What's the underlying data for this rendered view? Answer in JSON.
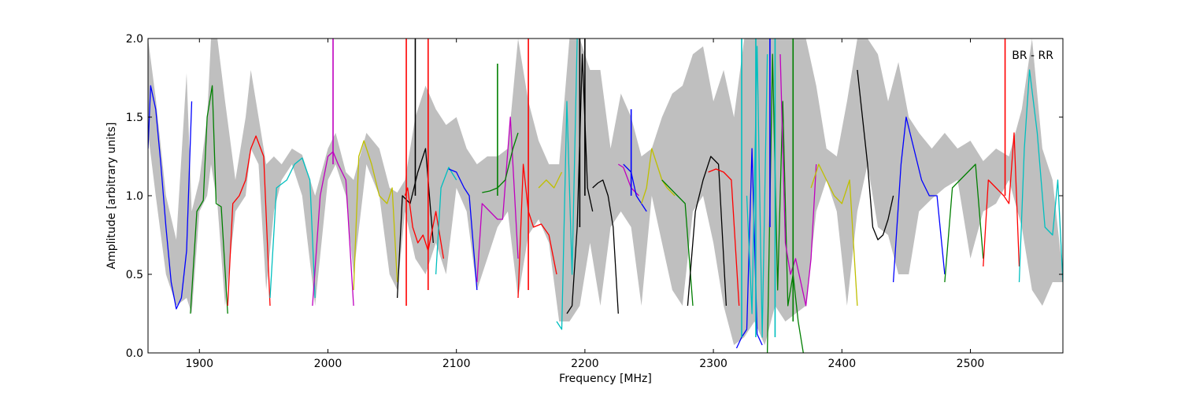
{
  "chart_data": {
    "type": "line",
    "title": "",
    "annotation": "BR - RR",
    "xlabel": "Frequency [MHz]",
    "ylabel": "Amplitude [arbitrary units]",
    "xlim": [
      1860,
      2572
    ],
    "ylim": [
      0.0,
      2.0
    ],
    "x_ticks": [
      1900,
      2000,
      2100,
      2200,
      2300,
      2400,
      2500
    ],
    "y_ticks": [
      0.0,
      0.5,
      1.0,
      1.5,
      2.0
    ],
    "x_tick_labels": [
      "1900",
      "2000",
      "2100",
      "2200",
      "2300",
      "2400",
      "2500"
    ],
    "y_tick_labels": [
      "0.0",
      "0.5",
      "1.0",
      "1.5",
      "2.0"
    ],
    "grid": false,
    "legend": "none",
    "envelope": {
      "color": "#bfbfbf",
      "x": [
        1860,
        1866,
        1874,
        1882,
        1890,
        1894,
        1900,
        1906,
        1909,
        1914,
        1920,
        1928,
        1936,
        1940,
        1946,
        1952,
        1958,
        1964,
        1972,
        1980,
        1990,
        2000,
        2006,
        2014,
        2020,
        2030,
        2040,
        2048,
        2054,
        2060,
        2068,
        2076,
        2084,
        2092,
        2100,
        2108,
        2116,
        2124,
        2132,
        2140,
        2148,
        2156,
        2164,
        2172,
        2180,
        2188,
        2196,
        2204,
        2212,
        2220,
        2228,
        2236,
        2244,
        2252,
        2260,
        2268,
        2276,
        2284,
        2292,
        2300,
        2308,
        2316,
        2324,
        2332,
        2340,
        2348,
        2356,
        2364,
        2372,
        2380,
        2388,
        2396,
        2404,
        2412,
        2420,
        2428,
        2436,
        2444,
        2452,
        2460,
        2470,
        2480,
        2490,
        2500,
        2510,
        2520,
        2530,
        2540,
        2548,
        2556,
        2564,
        2572
      ],
      "upper": [
        2.0,
        1.62,
        1.0,
        0.72,
        1.78,
        0.9,
        1.1,
        1.5,
        2.0,
        2.0,
        1.6,
        1.1,
        1.5,
        1.8,
        1.5,
        1.2,
        1.25,
        1.2,
        1.3,
        1.26,
        1.0,
        1.3,
        1.4,
        1.15,
        1.1,
        1.4,
        1.3,
        1.05,
        1.02,
        1.1,
        1.5,
        1.7,
        1.55,
        1.45,
        1.5,
        1.3,
        1.2,
        1.25,
        1.25,
        1.3,
        2.0,
        1.6,
        1.35,
        1.2,
        1.2,
        2.0,
        2.0,
        1.8,
        1.8,
        1.3,
        1.65,
        1.5,
        1.25,
        1.3,
        1.5,
        1.65,
        1.7,
        1.9,
        1.95,
        1.6,
        1.8,
        1.5,
        2.0,
        2.0,
        2.0,
        2.0,
        2.0,
        2.0,
        2.0,
        1.7,
        1.3,
        1.25,
        1.6,
        2.0,
        2.0,
        1.9,
        1.6,
        1.85,
        1.5,
        1.4,
        1.3,
        1.4,
        1.3,
        1.35,
        1.22,
        1.3,
        1.25,
        1.55,
        2.0,
        1.3,
        1.1,
        0.5
      ],
      "lower": [
        1.4,
        1.0,
        0.5,
        0.3,
        0.35,
        0.25,
        0.9,
        1.0,
        1.2,
        0.95,
        0.3,
        0.9,
        1.0,
        1.3,
        1.2,
        0.4,
        0.9,
        1.1,
        1.2,
        1.0,
        0.3,
        1.1,
        1.2,
        1.0,
        0.5,
        1.2,
        1.0,
        0.5,
        0.4,
        0.9,
        0.6,
        0.5,
        0.7,
        0.5,
        1.05,
        0.9,
        0.4,
        0.6,
        0.8,
        0.9,
        0.35,
        0.75,
        0.85,
        0.7,
        0.2,
        0.2,
        0.3,
        0.7,
        0.3,
        0.8,
        0.9,
        0.8,
        0.3,
        1.0,
        0.7,
        0.4,
        0.3,
        0.9,
        1.0,
        0.7,
        0.3,
        0.05,
        0.1,
        0.2,
        0.05,
        0.3,
        0.2,
        0.25,
        0.3,
        0.9,
        1.1,
        0.9,
        0.3,
        0.9,
        1.2,
        0.8,
        0.75,
        0.5,
        0.5,
        0.9,
        0.98,
        1.05,
        1.1,
        0.6,
        0.9,
        0.95,
        1.1,
        0.8,
        0.4,
        0.3,
        0.45,
        0.45
      ]
    },
    "series": [
      {
        "color": "#0000ff",
        "x": [
          1860,
          1862,
          1866,
          1870,
          1874,
          1878,
          1882,
          1886,
          1890,
          1894
        ],
        "y": [
          1.3,
          1.7,
          1.55,
          1.2,
          0.8,
          0.45,
          0.28,
          0.35,
          0.65,
          1.6
        ]
      },
      {
        "color": "#007f00",
        "x": [
          1893,
          1898,
          1903,
          1906,
          1910,
          1913,
          1917,
          1922
        ],
        "y": [
          0.25,
          0.9,
          0.97,
          1.5,
          1.7,
          0.95,
          0.93,
          0.25
        ]
      },
      {
        "color": "#ff0000",
        "x": [
          1922,
          1926,
          1931,
          1936,
          1940,
          1944,
          1950,
          1955
        ],
        "y": [
          0.3,
          0.95,
          1.0,
          1.1,
          1.3,
          1.38,
          1.25,
          0.3
        ]
      },
      {
        "color": "#00bfbf",
        "x": [
          1955,
          1960,
          1968,
          1974,
          1980,
          1986,
          1990
        ],
        "y": [
          0.35,
          1.05,
          1.1,
          1.2,
          1.24,
          1.1,
          0.35
        ]
      },
      {
        "color": "#bf00bf",
        "x": [
          1988,
          1994,
          2000,
          2004,
          2008,
          2014,
          2020
        ],
        "y": [
          0.3,
          1.0,
          1.25,
          1.28,
          1.2,
          1.1,
          0.3
        ]
      },
      {
        "color": "#bfbf00",
        "x": [
          2020,
          2024,
          2028,
          2034,
          2040,
          2046,
          2050,
          2054
        ],
        "y": [
          0.4,
          1.25,
          1.35,
          1.2,
          1.0,
          0.95,
          1.05,
          0.45
        ]
      },
      {
        "color": "#000000",
        "x": [
          2054,
          2058,
          2064,
          2070,
          2076,
          2082
        ],
        "y": [
          0.35,
          1.0,
          0.95,
          1.15,
          1.3,
          0.7
        ]
      },
      {
        "color": "#ff0000",
        "x": [
          2060,
          2062,
          2066,
          2070,
          2074,
          2078,
          2084,
          2090
        ],
        "y": [
          1.0,
          1.05,
          0.8,
          0.7,
          0.75,
          0.65,
          0.9,
          0.6
        ]
      },
      {
        "color": "#00bfbf",
        "x": [
          2084,
          2088,
          2094,
          2100
        ],
        "y": [
          0.5,
          1.05,
          1.18,
          1.1
        ]
      },
      {
        "color": "#0000ff",
        "x": [
          2094,
          2100,
          2106,
          2110,
          2116
        ],
        "y": [
          1.17,
          1.15,
          1.05,
          1.0,
          0.4
        ]
      },
      {
        "color": "#bf00bf",
        "x": [
          2116,
          2120,
          2126,
          2132,
          2136,
          2142,
          2148
        ],
        "y": [
          0.45,
          0.95,
          0.9,
          0.85,
          0.85,
          1.5,
          0.6
        ]
      },
      {
        "color": "#007f00",
        "x": [
          2120,
          2126,
          2132,
          2138,
          2144,
          2148
        ],
        "y": [
          1.02,
          1.03,
          1.05,
          1.1,
          1.3,
          1.4
        ]
      },
      {
        "color": "#ff0000",
        "x": [
          2148,
          2152,
          2156,
          2160,
          2166,
          2172,
          2178
        ],
        "y": [
          0.35,
          1.2,
          0.9,
          0.8,
          0.82,
          0.75,
          0.5
        ]
      },
      {
        "color": "#bfbf00",
        "x": [
          2164,
          2170,
          2176,
          2182
        ],
        "y": [
          1.05,
          1.1,
          1.05,
          1.15
        ]
      },
      {
        "color": "#00bfbf",
        "x": [
          2178,
          2182,
          2186,
          2190,
          2194
        ],
        "y": [
          0.2,
          0.15,
          1.6,
          0.5,
          2.0
        ]
      },
      {
        "color": "#000000",
        "x": [
          2186,
          2190,
          2194,
          2198,
          2202,
          2206
        ],
        "y": [
          0.25,
          0.3,
          0.8,
          1.9,
          1.05,
          0.9
        ]
      },
      {
        "color": "#000000",
        "x": [
          2206,
          2210,
          2214,
          2218,
          2222,
          2226
        ],
        "y": [
          1.05,
          1.08,
          1.1,
          1.0,
          0.8,
          0.25
        ]
      },
      {
        "color": "#bf00bf",
        "x": [
          2226,
          2230,
          2236,
          2242
        ],
        "y": [
          1.2,
          1.18,
          1.05,
          1.0
        ]
      },
      {
        "color": "#0000ff",
        "x": [
          2230,
          2236,
          2240,
          2244,
          2248
        ],
        "y": [
          1.2,
          1.15,
          1.0,
          0.95,
          0.9
        ]
      },
      {
        "color": "#bfbf00",
        "x": [
          2244,
          2248,
          2252,
          2256,
          2260,
          2264,
          2270
        ],
        "y": [
          0.95,
          1.05,
          1.3,
          1.2,
          1.1,
          1.05,
          1.0
        ]
      },
      {
        "color": "#007f00",
        "x": [
          2260,
          2266,
          2272,
          2278,
          2284
        ],
        "y": [
          1.1,
          1.05,
          1.0,
          0.95,
          0.3
        ]
      },
      {
        "color": "#000000",
        "x": [
          2280,
          2286,
          2292,
          2298,
          2304,
          2310
        ],
        "y": [
          0.3,
          0.9,
          1.1,
          1.25,
          1.2,
          0.3
        ]
      },
      {
        "color": "#ff0000",
        "x": [
          2296,
          2302,
          2308,
          2314,
          2320
        ],
        "y": [
          1.15,
          1.17,
          1.15,
          1.1,
          0.3
        ]
      },
      {
        "color": "#0000ff",
        "x": [
          2318,
          2322,
          2326,
          2330,
          2334,
          2338
        ],
        "y": [
          0.03,
          0.1,
          0.15,
          1.3,
          0.12,
          0.05
        ]
      },
      {
        "color": "#00bfbf",
        "x": [
          2326,
          2330,
          2334,
          2338,
          2342
        ],
        "y": [
          1.0,
          0.25,
          1.95,
          0.1,
          1.9
        ]
      },
      {
        "color": "#007f00",
        "x": [
          2342,
          2346,
          2350,
          2354,
          2358,
          2362,
          2366,
          2370
        ],
        "y": [
          0.0,
          1.9,
          0.4,
          1.6,
          0.3,
          0.5,
          0.2,
          0.0
        ]
      },
      {
        "color": "#bf00bf",
        "x": [
          2352,
          2356,
          2360,
          2364,
          2368,
          2372,
          2376,
          2380
        ],
        "y": [
          1.9,
          0.7,
          0.5,
          0.6,
          0.45,
          0.3,
          0.6,
          1.2
        ]
      },
      {
        "color": "#bfbf00",
        "x": [
          2376,
          2382,
          2388,
          2394,
          2400,
          2406,
          2412
        ],
        "y": [
          1.05,
          1.2,
          1.1,
          1.0,
          0.95,
          1.1,
          0.3
        ]
      },
      {
        "color": "#000000",
        "x": [
          2412,
          2416,
          2420,
          2424,
          2428,
          2432,
          2436,
          2440
        ],
        "y": [
          1.8,
          1.5,
          1.2,
          0.8,
          0.72,
          0.75,
          0.85,
          1.0
        ]
      },
      {
        "color": "#0000ff",
        "x": [
          2440,
          2446,
          2450,
          2456,
          2462,
          2468,
          2474,
          2480
        ],
        "y": [
          0.45,
          1.2,
          1.5,
          1.3,
          1.1,
          1.0,
          1.0,
          0.5
        ]
      },
      {
        "color": "#007f00",
        "x": [
          2480,
          2486,
          2492,
          2498,
          2504,
          2510
        ],
        "y": [
          0.45,
          1.05,
          1.1,
          1.15,
          1.2,
          0.6
        ]
      },
      {
        "color": "#ff0000",
        "x": [
          2510,
          2514,
          2520,
          2526,
          2530,
          2534,
          2538
        ],
        "y": [
          0.55,
          1.1,
          1.05,
          1.0,
          0.95,
          1.4,
          0.55
        ]
      },
      {
        "color": "#00bfbf",
        "x": [
          2538,
          2542,
          2546,
          2552,
          2558,
          2564,
          2568,
          2572
        ],
        "y": [
          0.45,
          1.3,
          1.8,
          1.4,
          0.8,
          0.75,
          1.1,
          0.45
        ]
      }
    ],
    "spikes": [
      {
        "color": "#bf00bf",
        "x": 2004,
        "y0": 1.2,
        "y1": 2.0
      },
      {
        "color": "#ff0000",
        "x": 2061,
        "y0": 0.3,
        "y1": 2.0
      },
      {
        "color": "#000000",
        "x": 2068,
        "y0": 1.0,
        "y1": 2.0
      },
      {
        "color": "#ff0000",
        "x": 2078,
        "y0": 0.4,
        "y1": 2.0
      },
      {
        "color": "#007f00",
        "x": 2132,
        "y0": 1.0,
        "y1": 1.84
      },
      {
        "color": "#ff0000",
        "x": 2156,
        "y0": 0.4,
        "y1": 2.0
      },
      {
        "color": "#000000",
        "x": 2196,
        "y0": 0.8,
        "y1": 2.0
      },
      {
        "color": "#000000",
        "x": 2200,
        "y0": 1.0,
        "y1": 2.0
      },
      {
        "color": "#0000ff",
        "x": 2236,
        "y0": 1.0,
        "y1": 1.55
      },
      {
        "color": "#00bfbf",
        "x": 2322,
        "y0": 0.1,
        "y1": 2.0
      },
      {
        "color": "#00bfbf",
        "x": 2333,
        "y0": 0.1,
        "y1": 2.0
      },
      {
        "color": "#0000ff",
        "x": 2344,
        "y0": 0.8,
        "y1": 2.0
      },
      {
        "color": "#00bfbf",
        "x": 2348,
        "y0": 0.1,
        "y1": 2.0
      },
      {
        "color": "#007f00",
        "x": 2362,
        "y0": 0.2,
        "y1": 2.0
      },
      {
        "color": "#ff0000",
        "x": 2527,
        "y0": 1.0,
        "y1": 2.0
      }
    ]
  }
}
